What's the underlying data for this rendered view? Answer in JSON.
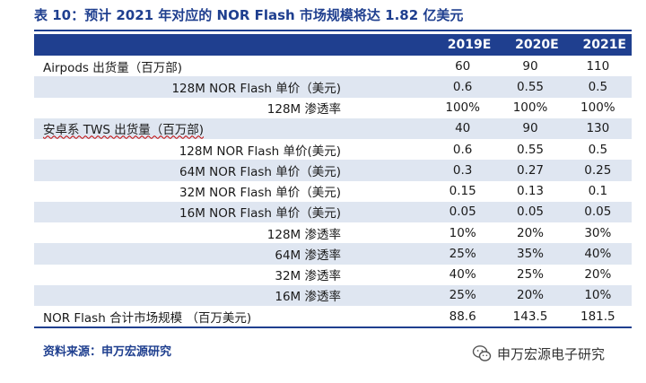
{
  "title": "表 10：预计 2021 年对应的 NOR Flash 市场规模将达 1.82 亿美元",
  "header": {
    "label": "",
    "years": [
      "2019E",
      "2020E",
      "2021E"
    ]
  },
  "rows": [
    {
      "label": "Airpods 出货量（百万部)",
      "values": [
        "60",
        "90",
        "110"
      ]
    },
    {
      "label": "128M NOR Flash 单价（美元)",
      "values": [
        "0.6",
        "0.55",
        "0.5"
      ]
    },
    {
      "label": "128M  渗透率",
      "values": [
        "100%",
        "100%",
        "100%"
      ]
    },
    {
      "label": "安卓系 TWS 出货量（百万部)",
      "values": [
        "40",
        "90",
        "130"
      ]
    },
    {
      "label": "128M NOR Flash 单价(美元)",
      "values": [
        "0.6",
        "0.55",
        "0.5"
      ]
    },
    {
      "label": "64M NOR Flash 单价（美元)",
      "values": [
        "0.3",
        "0.27",
        "0.25"
      ]
    },
    {
      "label": "32M NOR Flash 单价（美元)",
      "values": [
        "0.15",
        "0.13",
        "0.1"
      ]
    },
    {
      "label": "16M NOR Flash 单价（美元)",
      "values": [
        "0.05",
        "0.05",
        "0.05"
      ]
    },
    {
      "label": "128M 渗透率",
      "values": [
        "10%",
        "20%",
        "30%"
      ]
    },
    {
      "label": "64M 渗透率",
      "values": [
        "25%",
        "35%",
        "40%"
      ]
    },
    {
      "label": "32M 渗透率",
      "values": [
        "40%",
        "25%",
        "20%"
      ]
    },
    {
      "label": "16M 渗透率",
      "values": [
        "25%",
        "20%",
        "10%"
      ]
    },
    {
      "label": "NOR Flash 合计市场规模 （百万美元)",
      "values": [
        "88.6",
        "143.5",
        "181.5"
      ]
    }
  ],
  "source": "资料来源：申万宏源研究",
  "watermark": "申万宏源电子研究",
  "colors": {
    "header_bg": "#1f3f8f",
    "alt_row": "#dfe6f1",
    "title": "#1f3f8f"
  },
  "icons": {
    "watermark": "wechat-icon"
  }
}
